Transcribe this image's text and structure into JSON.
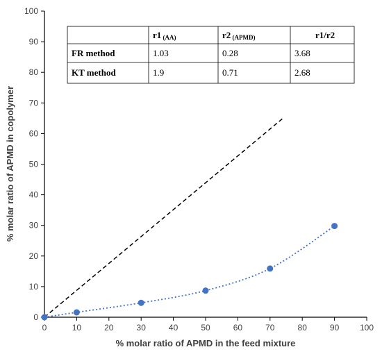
{
  "chart_data": {
    "type": "scatter",
    "xlabel": "% molar ratio of APMD in the feed mixture",
    "ylabel": "% molar ratio of APMD in copolymer",
    "xlim": [
      0,
      100
    ],
    "ylim": [
      0,
      100
    ],
    "x_ticks": [
      "0",
      "10",
      "20",
      "30",
      "40",
      "50",
      "60",
      "70",
      "80",
      "90",
      "100"
    ],
    "y_ticks": [
      "0",
      "10",
      "20",
      "30",
      "40",
      "50",
      "60",
      "70",
      "80",
      "90",
      "100"
    ],
    "grid": false,
    "series": [
      {
        "style": "points with dotted trend line",
        "color": "#4472C4",
        "x": [
          0,
          10,
          30,
          50,
          70,
          90
        ],
        "y": [
          0,
          1.6,
          4.7,
          8.7,
          15.9,
          29.8
        ]
      },
      {
        "style": "dashed reference line",
        "color": "#000000",
        "x": [
          0,
          74
        ],
        "y": [
          0,
          65
        ]
      }
    ],
    "table": {
      "headers": [
        {
          "main": "",
          "sub": ""
        },
        {
          "main": "r1",
          "sub": " (AA)"
        },
        {
          "main": "r2",
          "sub": " (APMD)"
        },
        {
          "main": "r1/r2",
          "sub": ""
        }
      ],
      "rows": [
        [
          "FR method",
          "1.03",
          "0.28",
          "3.68"
        ],
        [
          "KT method",
          "1.9",
          "0.71",
          "2.68"
        ]
      ]
    }
  }
}
